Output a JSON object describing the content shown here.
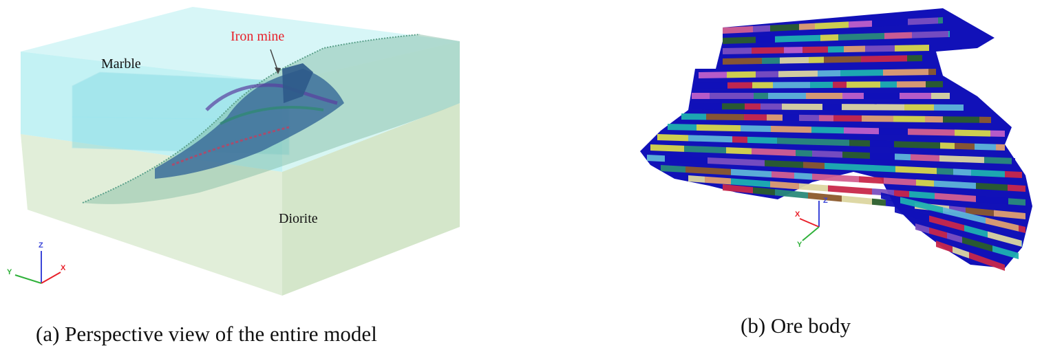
{
  "panel_a": {
    "caption": "(a)  Perspective view of the entire model",
    "labels": {
      "marble": "Marble",
      "iron_mine": "Iron mine",
      "diorite": "Diorite"
    },
    "axes": {
      "z": "Z",
      "y": "Y",
      "x": "X"
    }
  },
  "panel_b": {
    "caption": "(b)    Ore body",
    "axes": {
      "z": "Z",
      "x": "X",
      "y": "Y"
    }
  },
  "colors": {
    "marble_block": "#a9ecef",
    "diorite_block": "#cfe6c8",
    "iron_label": "#e8202a",
    "axis_x": "#e8202a",
    "axis_y": "#2fb13a",
    "axis_z": "#3b45d8",
    "ore_palette": [
      "#1111b8",
      "#dcd6a0",
      "#2a8a7a",
      "#7a4fc0",
      "#c8284a",
      "#d8d84a",
      "#2b5e2b",
      "#d46090",
      "#8c5a2c",
      "#5fb5d8",
      "#c060c8",
      "#e0a070",
      "#1fb0b0"
    ]
  }
}
